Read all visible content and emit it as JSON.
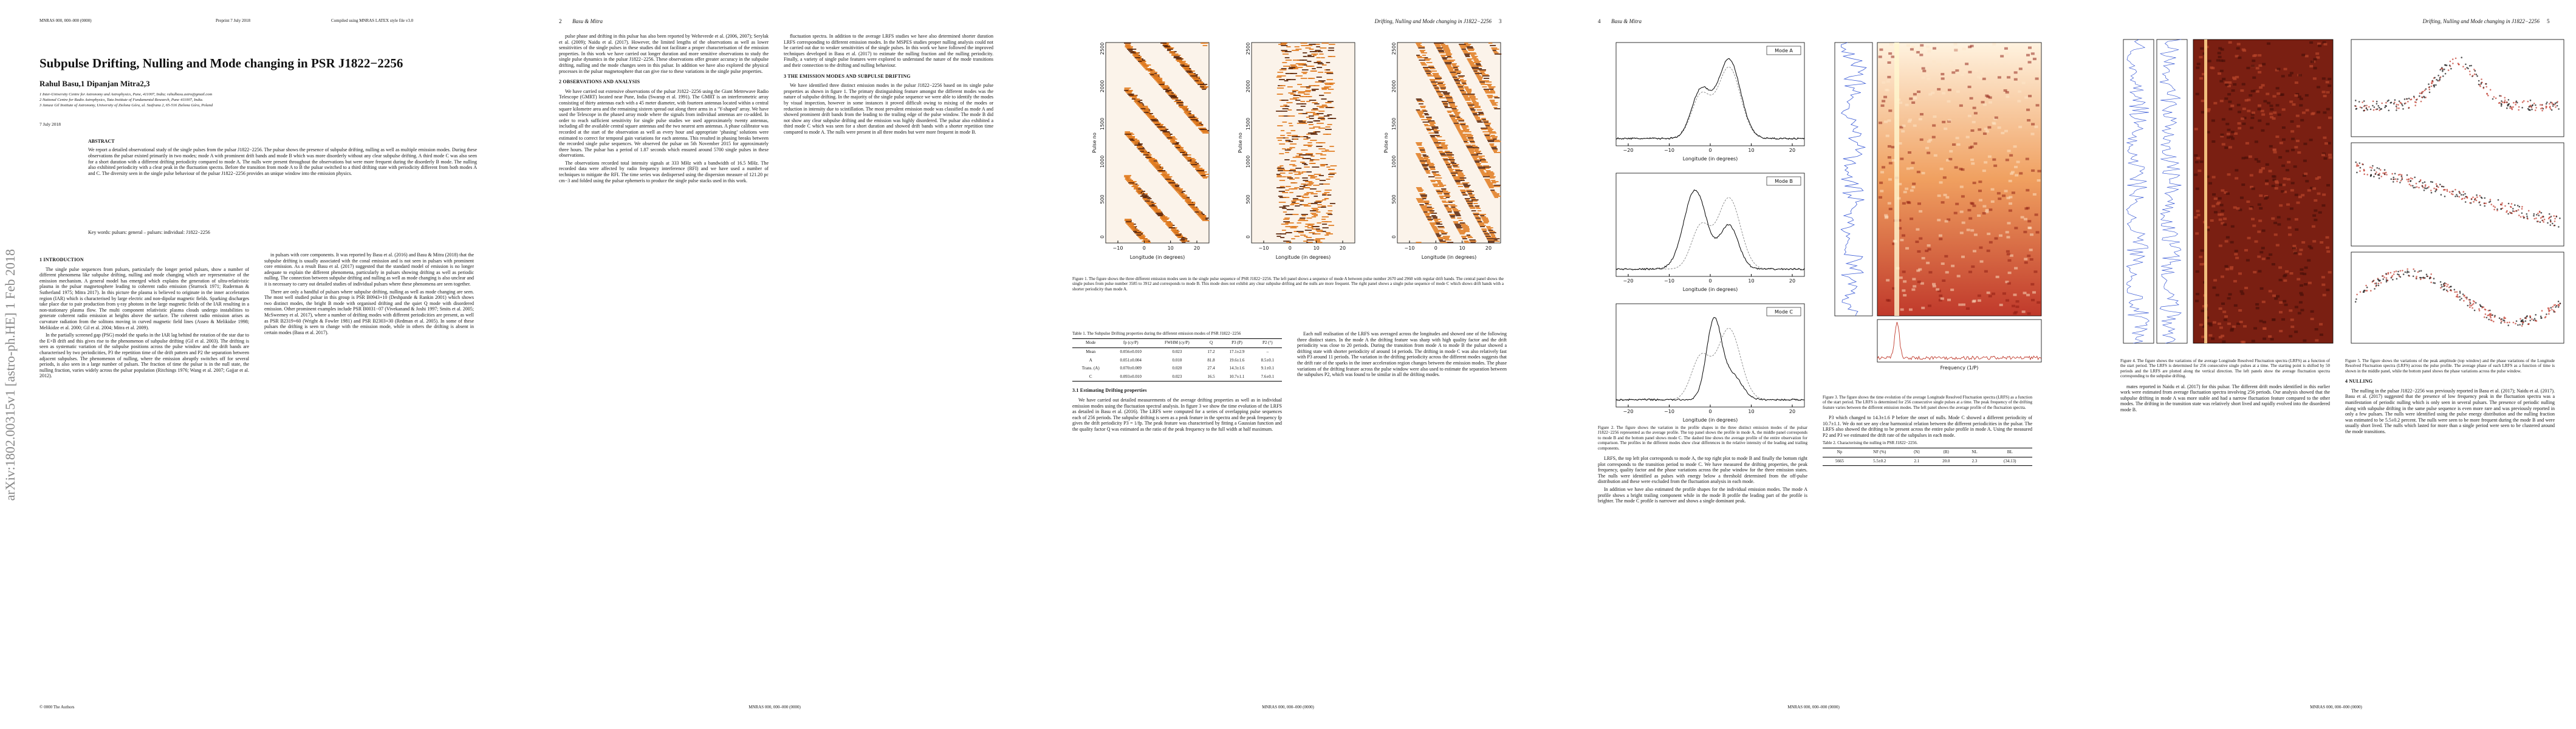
{
  "pages": [
    {
      "header": {
        "left": "MNRAS 000, 000–000 (0000)",
        "center": "Preprint 7 July 2018",
        "right": "Compiled using MNRAS LATEX style file v3.0"
      },
      "arxiv": "arXiv:1802.00315v1 [astro-ph.HE] 1 Feb 2018",
      "title": "Subpulse Drifting, Nulling and Mode changing in PSR J1822−2256",
      "authors": "Rahul Basu,1 Dipanjan Mitra2,3",
      "affiliations": [
        "1 Inter-University Centre for Astronomy and Astrophysics, Pune, 411007, India; rahulbasu.astro@gmail.com",
        "2 National Centre for Radio Astrophysics, Tata Institute of Fundamental Research, Pune 411007, India.",
        "3 Janusz Gil Institute of Astronomy, University of Zielona Góra, ul. Szafrana 2, 65-516 Zielona Góra, Poland"
      ],
      "date": "7 July 2018",
      "abstract": {
        "heading": "ABSTRACT",
        "text": "We report a detailed observational study of the single pulses from the pulsar J1822−2256. The pulsar shows the presence of subpulse drifting, nulling as well as multiple emission modes. During these observations the pulsar existed primarily in two modes; mode A with prominent drift bands and mode B which was more disorderly without any clear subpulse drifting. A third mode C was also seen for a short duration with a different drifting periodicity compared to mode A. The nulls were present throughout the observations but were more frequent during the disorderly B mode. The nulling also exhibited periodicity with a clear peak in the fluctuation spectra. Before the transition from mode A to B the pulsar switched to a third drifting state with periodicity different from both modes A and C. The diversity seen in the single pulse behaviour of the pulsar J1822−2256 provides an unique window into the emission physics.",
        "keywords": "Key words: pulsars: general – pulsars: individual: J1822−2256"
      },
      "columns": [
        [
          {
            "heading": "1 INTRODUCTION"
          },
          {
            "text": "The single pulse sequences from pulsars, particularly the longer period pulsars, show a number of different phenomena like subpulse drifting, nulling and mode changing which are representative of the emission mechanism. A general model has emerged which explains the generation of ultra-relativistic plasma in the pulsar magnetosphere leading to coherent radio emission (Sturrock 1971; Ruderman & Sutherland 1975; Mitra 2017). In this picture the plasma is believed to originate in the inner acceleration region (IAR) which is characterised by large electric and non-dipolar magnetic fields. Sparking discharges take place due to pair production from γ-ray photons in the large magnetic fields of the IAR resulting in a non-stationary plasma flow. The multi component relativistic plasma clouds undergo instabilities to generate coherent radio emission at heights above the surface. The coherent radio emission arises as curvature radiation from the solitons moving in curved magnetic field lines (Asseo & Melikidze 1998; Melikidze et al. 2000; Gil et al. 2004; Mitra et al. 2009)."
          },
          {
            "text": "In the partially screened gap (PSG) model the sparks in the IAR lag behind the rotation of the star due to the E×B drift and this gives rise to the phenomenon of subpulse drifting (Gil et al. 2003). The drifting is seen as systematic variation of the subpulse positions across the pulse window and the drift bands are characterised by two periodicities, P3 the repetition time of the drift pattern and P2 the separation between adjacent subpulses. The phenomenon of nulling, where the emission abruptly switches off for several periods, is also seen in a large number of pulsars. The fraction of time the pulsar is in the null state, the nulling fraction, varies widely across the pulsar population (Ritchings 1976; Wang et al. 2007; Gajjar et al. 2012)."
          }
        ],
        [
          {
            "text": "in pulsars with core components. It was reported by Basu et al. (2016) and Basu & Mitra (2018) that the subpulse drifting is usually associated with the conal emission and is not seen in pulsars with prominent core emission. As a result Basu et al. (2017) suggested that the standard model of emission is no longer adequate to explain the different phenomena, particularly in pulsars showing drifting as well as periodic nulling. The connection between subpulse drifting and nulling as well as mode changing is also unclear and it is necessary to carry out detailed studies of individual pulsars where these phenomena are seen together."
          },
          {
            "text": "There are only a handful of pulsars where subpulse drifting, nulling as well as mode changing are seen. The most well studied pulsar in this group is PSR B0943+10 (Deshpande & Rankin 2001) which shows two distinct modes, the bright B mode with organised drifting and the quiet Q mode with disordered emission. Other prominent examples include PSR B0031−07 (Vivekanand & Joshi 1997; Smits et al. 2005; McSweeney et al. 2017), where a number of drifting modes with different periodicities are present, as well as PSR B2319+60 (Wright & Fowler 1981) and PSR B2303+30 (Redman et al. 2005). In some of these pulsars the drifting is seen to change with the emission mode, while in others the drifting is absent in certain modes (Basu et al. 2017)."
          }
        ]
      ],
      "footer": "© 0000 The Authors"
    },
    {
      "header": {
        "number": "2",
        "running": "Basu & Mitra"
      },
      "columns": [
        [
          {
            "text": "pulse phase and drifting in this pulsar has also been reported by Weltevrede et al. (2006, 2007); Serylak et al. (2009); Naidu et al. (2017). However, the limited lengths of the observations as well as lower sensitivities of the single pulses in these studies did not facilitate a proper characterisation of the emission properties. In this work we have carried out longer duration and more sensitive observations to study the single pulse dynamics in the pulsar J1822−2256. These observations offer greater accuracy in the subpulse drifting, nulling and the mode changes seen in this pulsar. In addition we have also explored the physical processes in the pulsar magnetosphere that can give rise to these variations in the single pulse properties."
          },
          {
            "heading": "2 OBSERVATIONS AND ANALYSIS"
          },
          {
            "text": "We have carried out extensive observations of the pulsar J1822−2256 using the Giant Metrewave Radio Telescope (GMRT) located near Pune, India (Swarup et al. 1991). The GMRT is an interferometric array consisting of thirty antennas each with a 45 meter diameter, with fourteen antennas located within a central square kilometre area and the remaining sixteen spread out along three arms in a ‘Y-shaped’ array. We have used the Telescope in the phased array mode where the signals from individual antennas are co-added. In order to reach sufficient sensitivity for single pulse studies we used approximately twenty antennas, including all the available central square antennas and the two nearest arm antennas. A phase calibrator was recorded at the start of the observation as well as every hour and appropriate ‘phasing’ solutions were estimated to correct for temporal gain variations for each antenna. This resulted in phasing breaks between the recorded single pulse sequences. We observed the pulsar on 5th November 2015 for approximately three hours. The pulsar has a period of 1.87 seconds which ensured around 5700 single pulses in these observations."
          },
          {
            "text": "The observations recorded total intensity signals at 333 MHz with a bandwidth of 16.5 MHz. The recorded data were affected by radio frequency interference (RFI) and we have used a number of techniques to mitigate the RFI. The time series was dedispersed using the dispersion measure of 121.20 pc cm−3 and folded using the pulsar ephemeris to produce the single pulse stacks used in this work."
          }
        ],
        [
          {
            "text": "fluctuation spectra. In addition to the average LRFS studies we have also determined shorter duration LRFS corresponding to different emission modes. In the MSPES studies proper nulling analysis could not be carried out due to weaker sensitivities of the single pulses. In this work we have followed the improved techniques developed in Basu et al. (2017) to estimate the nulling fraction and the nulling periodicity. Finally, a variety of single pulse features were explored to understand the nature of the mode transitions and their connection to the drifting and nulling behaviour."
          },
          {
            "heading": "3 THE EMISSION MODES AND SUBPULSE DRIFTING"
          },
          {
            "text": "We have identified three distinct emission modes in the pulsar J1822−2256 based on its single pulse properties as shown in figure 1. The primary distinguishing feature amongst the different modes was the nature of subpulse drifting. In the majority of the single pulse sequence we were able to identify the modes by visual inspection, however in some instances it proved difficult owing to mixing of the modes or reduction in intensity due to scintillation. The most prevalent emission mode was classified as mode A and showed prominent drift bands from the leading to the trailing edge of the pulse window. The mode B did not show any clear subpulse drifting and the emission was highly disordered. The pulsar also exhibited a third mode C which was seen for a short duration and showed drift bands with a shorter repetition time compared to mode A. The nulls were present in all three modes but were more frequent in mode B."
          }
        ]
      ],
      "footer": "MNRAS 000, 000–000 (0000)"
    },
    {
      "header": {
        "number": "3",
        "running": "Drifting, Nulling and Mode changing in J1822−2256"
      },
      "figure": {
        "ylabel": "Pulse no",
        "yticks": [
          "0",
          "500",
          "1000",
          "1500",
          "2000",
          "2500"
        ],
        "xlabel": "Longitude (in degrees)",
        "xticks": [
          "−10",
          "0",
          "10",
          "20"
        ],
        "caption": "Figure 1. The figure shows the three different emission modes seen in the single pulse sequence of PSR J1822−2256. The left panel shows a sequence of mode A between pulse number 2670 and 2960 with regular drift bands. The central panel shows the single pulses from pulse number 3585 to 3912 and corresponds to mode B. This mode does not exhibit any clear subpulse drifting and the nulls are more frequent. The right panel shows a single pulse sequence of mode C which shows drift bands with a shorter periodicity than mode A."
      },
      "columns": [
        [
          {
            "table": {
              "caption": "Table 1. The Subpulse Drifting properties during the different emission modes of PSR J1822−2256",
              "header": [
                "Mode",
                "fp (cy/P)",
                "FWHM (cy/P)",
                "Q",
                "P3 (P)",
                "P2 (°)"
              ],
              "rows": [
                [
                  "Mean",
                  "0.056±0.010",
                  "0.023",
                  "17.2",
                  "17.1±2.9",
                  "–"
                ],
                [
                  "A",
                  "0.051±0.004",
                  "0.010",
                  "81.8",
                  "19.6±1.6",
                  "8.5±0.1"
                ],
                [
                  "Trans. (A)",
                  "0.070±0.009",
                  "0.020",
                  "27.4",
                  "14.3±1.6",
                  "9.1±0.1"
                ],
                [
                  "C",
                  "0.093±0.010",
                  "0.023",
                  "16.5",
                  "10.7±1.1",
                  "7.6±0.1"
                ]
              ]
            }
          },
          {
            "heading": "3.1 Estimating Drifting properties"
          },
          {
            "text": "We have carried out detailed measurements of the average drifting properties as well as in individual emission modes using the fluctuation spectral analysis. In figure 3 we show the time evolution of the LRFS as detailed in Basu et al. (2016). The LRFS were computed for a series of overlapping pulse sequences each of 256 periods. The subpulse drifting is seen as a peak feature in the spectra and the peak frequency fp gives the drift periodicity P3 = 1/fp. The peak feature was characterised by fitting a Gaussian function and the quality factor Q was estimated as the ratio of the peak frequency to the full width at half maximum."
          }
        ],
        [
          {
            "text": "Each null realisation of the LRFS was averaged across the longitudes and showed one of the following three distinct states. In the mode A the drifting feature was sharp with high quality factor and the drift periodicity was close to 20 periods. During the transition from mode A to mode B the pulsar showed a drifting state with shorter periodicity of around 14 periods. The drifting in mode C was also relatively fast with P3 around 11 periods. The variation in the drifting periodicity across the different modes suggests that the drift rate of the sparks in the inner acceleration region changes between the emission modes. The phase variations of the drifting feature across the pulse window were also used to estimate the separation between the subpulses P2, which was found to be similar in all the drifting modes."
          }
        ]
      ],
      "footer": "MNRAS 000, 000–000 (0000)"
    },
    {
      "header": {
        "number": "4",
        "running": "Basu & Mitra"
      },
      "figure_2": {
        "modes": [
          "Mode A",
          "Mode B",
          "Mode C"
        ],
        "xlabel": "Longitude (in degrees)",
        "xticks": [
          "−20",
          "−10",
          "0",
          "10",
          "20"
        ]
      },
      "figure_3": {
        "xlabel": "Frequency (1/P)"
      },
      "columns": [
        [
          {
            "caption": "Figure 2. The figure shows the variation in the profile shapes in the three distinct emission modes of the pulsar J1822−2256 represented as the average profile. The top panel shows the profile in mode A, the middle panel corresponds to mode B and the bottom panel shows mode C. The dashed line shows the average profile of the entire observation for comparison. The profiles in the different modes show clear differences in the relative intensity of the leading and trailing components."
          },
          {
            "text": "LRFS, the top left plot corresponds to mode A, the top right plot to mode B and finally the bottom right plot corresponds to the transition period to mode C. We have measured the drifting properties, the peak frequency, quality factor and the phase variations across the pulse window for the three emission states. The nulls were identified as pulses with energy below a threshold determined from the off-pulse distribution and these were excluded from the fluctuation analysis in each mode."
          },
          {
            "text": "In addition we have also estimated the profile shapes for the individual emission modes. The mode A profile shows a bright trailing component while in the mode B profile the leading part of the profile is brighter. The mode C profile is narrower and shows a single dominant peak."
          }
        ],
        [
          {
            "caption": "Figure 3. The figure shows the time evolution of the average Longitude Resolved Fluctuation spectra (LRFS) as a function of the start period. The LRFS is determined for 256 consecutive single pulses at a time. The peak frequency of the drifting feature varies between the different emission modes. The left panel shows the average profile of the fluctuation spectra."
          },
          {
            "text": "P3 which changed to 14.3±1.6 P before the onset of nulls. Mode C showed a different periodicity of 10.7±1.1. We do not see any clear harmonical relation between the different periodicities in the pulsar. The LRFS also showed the drifting to be present across the entire pulse profile in mode A. Using the measured P2 and P3 we estimated the drift rate of the subpulses in each mode."
          },
          {
            "table": {
              "caption": "Table 2. Characterising the nulling in PSR J1822−2256.",
              "header": [
                "Np",
                "NF (%)",
                "⟨N⟩",
                "⟨B⟩",
                "NL",
                "BL"
              ],
              "rows": [
                [
                  "5665",
                  "5.5±0.2",
                  "2.1",
                  "20.0",
                  "2.3",
                  "(34.13)"
                ]
              ]
            }
          }
        ]
      ],
      "footer": "MNRAS 000, 000–000 (0000)"
    },
    {
      "header": {
        "number": "5",
        "running": "Drifting, Nulling and Mode changing in J1822−2256"
      },
      "columns": [
        [
          {
            "caption": "Figure 4. The figure shows the variations of the average Longitude Resolved Fluctuation spectra (LRFS) as a function of the start period. The LRFS is determined for 256 consecutive single pulses at a time. The starting point is shifted by 50 periods and the LRFS are plotted along the vertical direction. The left panels show the average fluctuation spectra corresponding to the subpulse drifting."
          },
          {
            "text": "mates reported in Naidu et al. (2017) for this pulsar. The different drift modes identified in this earlier work were estimated from average fluctuation spectra involving 256 periods. Our analysis showed that the subpulse drifting in mode A was more stable and had a narrow fluctuation feature compared to the other modes. The drifting in the transition state was relatively short lived and rapidly evolved into the disordered mode B."
          }
        ],
        [
          {
            "caption": "Figure 5. The figure shows the variations of the peak amplitude (top window) and the phase variations of the Longitude Resolved Fluctuation spectra (LRFS) across the pulse profile. The average phase of each LRFS as a function of time is shown in the middle panel, while the bottom panel shows the phase variations across the pulse window."
          },
          {
            "heading": "4 NULLING"
          },
          {
            "text": "The nulling in the pulsar J1822−2256 was previously reported in Basu et al. (2017); Naidu et al. (2017). Basu et al. (2017) suggested that the presence of low frequency peak in the fluctuation spectra was a manifestation of periodic nulling which is only seen in several pulsars. The presence of periodic nulling along with subpulse drifting in the same pulse sequence is even more rare and was previously reported in only a few pulsars. The nulls were identified using the pulse energy distribution and the nulling fraction was estimated to be 5.5±0.2 percent. The nulls were seen to be more frequent during the mode B and were usually short lived. The nulls which lasted for more than a single period were seen to be clustered around the mode transitions."
          }
        ]
      ],
      "footer": "MNRAS 000, 000–000 (0000)"
    }
  ]
}
